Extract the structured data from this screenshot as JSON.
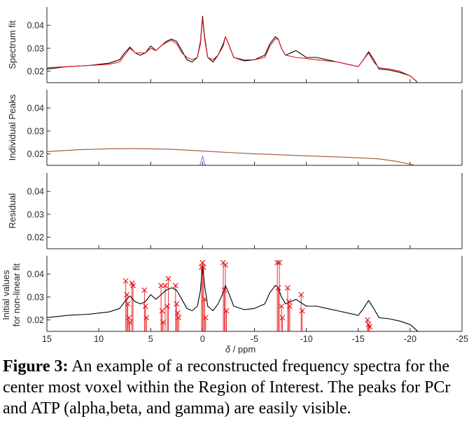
{
  "chart_data": [
    {
      "type": "line",
      "ylabel": "Spectrum fit",
      "yticks": [
        "0.04",
        "0.03",
        "0.02"
      ],
      "ylim": [
        0.015,
        0.048
      ],
      "xlim": [
        15,
        -25
      ],
      "series": [
        {
          "color": "#000000",
          "x": [
            15,
            13,
            11,
            9,
            8,
            7.5,
            7,
            6.5,
            6,
            5.5,
            5,
            4.5,
            4,
            3.5,
            3,
            2.5,
            2,
            1.5,
            1,
            0.5,
            0.2,
            0,
            -0.2,
            -0.5,
            -1,
            -1.5,
            -2,
            -2.2,
            -2.5,
            -3,
            -4,
            -5,
            -6,
            -6.5,
            -7,
            -7.3,
            -7.6,
            -8,
            -9,
            -10,
            -11,
            -12,
            -13,
            -14,
            -15,
            -15.5,
            -16,
            -16.5,
            -17,
            -18,
            -19,
            -20,
            -20.5,
            -21
          ],
          "y": [
            0.021,
            0.022,
            0.0225,
            0.0235,
            0.025,
            0.028,
            0.0305,
            0.028,
            0.027,
            0.028,
            0.031,
            0.029,
            0.031,
            0.033,
            0.034,
            0.033,
            0.029,
            0.025,
            0.024,
            0.026,
            0.033,
            0.044,
            0.035,
            0.026,
            0.024,
            0.027,
            0.032,
            0.035,
            0.032,
            0.026,
            0.0245,
            0.025,
            0.027,
            0.032,
            0.035,
            0.034,
            0.03,
            0.027,
            0.029,
            0.026,
            0.026,
            0.025,
            0.024,
            0.023,
            0.022,
            0.025,
            0.0285,
            0.025,
            0.021,
            0.0205,
            0.0195,
            0.018,
            0.016,
            0.014
          ]
        },
        {
          "color": "#e8191c",
          "x": [
            15,
            13,
            11,
            9,
            8,
            7.5,
            7,
            6.5,
            6,
            5.5,
            5,
            4.5,
            4,
            3.5,
            3,
            2.5,
            2,
            1.5,
            1,
            0.5,
            0.2,
            0,
            -0.2,
            -0.5,
            -1,
            -1.5,
            -2,
            -2.2,
            -2.5,
            -3,
            -4,
            -5,
            -6,
            -6.5,
            -7,
            -7.3,
            -7.6,
            -8,
            -9,
            -10,
            -11,
            -12,
            -13,
            -14,
            -15,
            -15.5,
            -16,
            -16.5,
            -17,
            -18,
            -19,
            -20,
            -20.5,
            -21
          ],
          "y": [
            0.0215,
            0.022,
            0.0225,
            0.023,
            0.024,
            0.027,
            0.03,
            0.028,
            0.028,
            0.028,
            0.03,
            0.029,
            0.031,
            0.0325,
            0.0335,
            0.032,
            0.028,
            0.026,
            0.025,
            0.026,
            0.032,
            0.043,
            0.034,
            0.026,
            0.025,
            0.027,
            0.031,
            0.035,
            0.032,
            0.026,
            0.025,
            0.025,
            0.026,
            0.031,
            0.034,
            0.034,
            0.03,
            0.027,
            0.026,
            0.0255,
            0.025,
            0.0245,
            0.024,
            0.023,
            0.022,
            0.025,
            0.028,
            0.024,
            0.0215,
            0.021,
            0.02,
            0.018,
            0.016,
            0.014
          ]
        }
      ]
    },
    {
      "type": "line",
      "ylabel": "Individual Peaks",
      "yticks": [
        "0.04",
        "0.03",
        "0.02"
      ],
      "ylim": [
        0.015,
        0.048
      ],
      "xlim": [
        15,
        -25
      ],
      "series": [
        {
          "color": "#a0522d",
          "x": [
            15,
            12,
            9,
            7,
            5,
            3,
            1,
            -1,
            -3,
            -5,
            -7,
            -9,
            -11,
            -13,
            -15,
            -17,
            -18,
            -19,
            -20,
            -20.5
          ],
          "y": [
            0.021,
            0.0218,
            0.0222,
            0.0223,
            0.0222,
            0.022,
            0.0215,
            0.021,
            0.0205,
            0.02,
            0.0197,
            0.0193,
            0.019,
            0.0187,
            0.0183,
            0.0178,
            0.0172,
            0.0165,
            0.0155,
            0.015
          ]
        },
        {
          "color": "#7b7bff",
          "x": [
            0.4,
            0.2,
            0.1,
            0,
            -0.1,
            -0.2,
            -0.4
          ],
          "y": [
            0.015,
            0.0155,
            0.0175,
            0.019,
            0.0175,
            0.0155,
            0.015
          ]
        }
      ]
    },
    {
      "type": "line",
      "ylabel": "Residual",
      "yticks": [
        "0.04",
        "0.03",
        "0.02"
      ],
      "ylim": [
        0.015,
        0.048
      ],
      "xlim": [
        15,
        -25
      ],
      "series": []
    },
    {
      "type": "line",
      "ylabel": "Initial values",
      "ylabel2": "for non-linear fit",
      "yticks": [
        "0.04",
        "0.03",
        "0.02"
      ],
      "ylim": [
        0.015,
        0.048
      ],
      "xlim": [
        15,
        -25
      ],
      "xticks": [
        "15",
        "10",
        "5",
        "0",
        "-5",
        "-10",
        "-15",
        "-20",
        "-25"
      ],
      "xlabel_var": "δ",
      "xlabel_unit": " / ppm",
      "series": [
        {
          "color": "#000000",
          "x": [
            15,
            13,
            11,
            9,
            8,
            7.5,
            7,
            6.5,
            6,
            5.5,
            5,
            4.5,
            4,
            3.5,
            3,
            2.5,
            2,
            1.5,
            1,
            0.5,
            0.2,
            0,
            -0.2,
            -0.5,
            -1,
            -1.5,
            -2,
            -2.2,
            -2.5,
            -3,
            -4,
            -5,
            -6,
            -6.5,
            -7,
            -7.3,
            -7.6,
            -8,
            -9,
            -10,
            -11,
            -12,
            -13,
            -14,
            -15,
            -15.5,
            -16,
            -16.5,
            -17,
            -18,
            -19,
            -20,
            -20.5,
            -21
          ],
          "y": [
            0.021,
            0.022,
            0.0225,
            0.0235,
            0.025,
            0.028,
            0.0305,
            0.028,
            0.027,
            0.028,
            0.031,
            0.029,
            0.031,
            0.033,
            0.034,
            0.033,
            0.029,
            0.025,
            0.024,
            0.026,
            0.033,
            0.044,
            0.035,
            0.026,
            0.024,
            0.027,
            0.032,
            0.035,
            0.032,
            0.026,
            0.0245,
            0.025,
            0.027,
            0.032,
            0.035,
            0.034,
            0.03,
            0.027,
            0.029,
            0.026,
            0.026,
            0.025,
            0.024,
            0.023,
            0.022,
            0.025,
            0.0285,
            0.025,
            0.021,
            0.0205,
            0.0195,
            0.018,
            0.016,
            0.014
          ]
        }
      ],
      "markers": {
        "color": "#e8191c",
        "x": [
          7.4,
          7.3,
          7.2,
          7.1,
          7.0,
          6.8,
          6.7,
          5.6,
          5.5,
          5.4,
          4.0,
          3.9,
          3.8,
          3.6,
          3.4,
          3.3,
          2.6,
          2.5,
          2.4,
          2.3,
          0.1,
          0.0,
          -0.1,
          -0.2,
          -0.3,
          -2.0,
          -2.1,
          -2.2,
          -2.3,
          -7.2,
          -7.3,
          -7.4,
          -7.6,
          -7.7,
          -8.2,
          -8.3,
          -8.4,
          -9.5,
          -9.6,
          -15.9,
          -16.0,
          -16.1
        ],
        "y": [
          0.037,
          0.031,
          0.027,
          0.021,
          0.019,
          0.036,
          0.035,
          0.033,
          0.026,
          0.021,
          0.035,
          0.024,
          0.019,
          0.035,
          0.026,
          0.038,
          0.035,
          0.027,
          0.023,
          0.021,
          0.043,
          0.045,
          0.043,
          0.029,
          0.021,
          0.045,
          0.033,
          0.044,
          0.024,
          0.045,
          0.034,
          0.045,
          0.026,
          0.021,
          0.034,
          0.028,
          0.026,
          0.031,
          0.024,
          0.02,
          0.018,
          0.017
        ]
      }
    }
  ],
  "caption": {
    "label": "Figure 3:",
    "text": " An example of a reconstructed frequency spectra for the center most voxel within the Region of Interest.  The peaks for PCr and ATP (alpha,beta, and gamma) are easily visible."
  }
}
